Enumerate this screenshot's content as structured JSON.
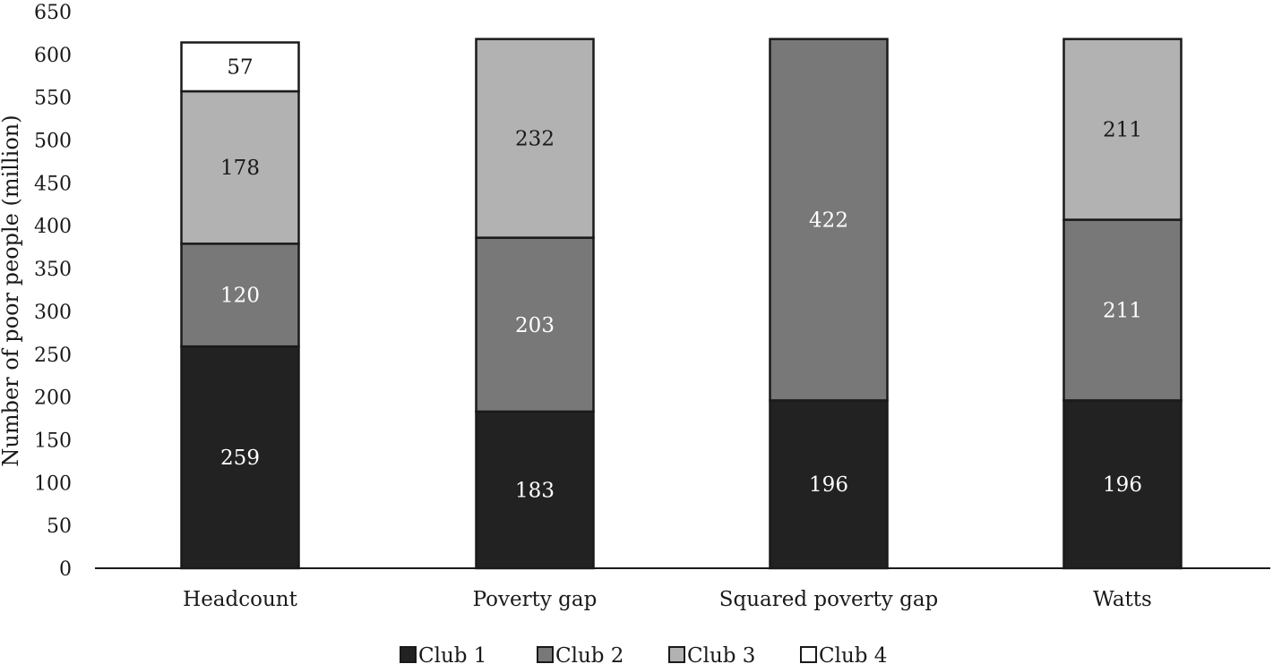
{
  "chart_data": {
    "type": "bar",
    "stacked": true,
    "categories": [
      "Headcount",
      "Poverty gap",
      "Squared poverty gap",
      "Watts"
    ],
    "series": [
      {
        "name": "Club 1",
        "color": "#222222",
        "label_color": "#ffffff",
        "values": [
          259,
          183,
          196,
          196
        ]
      },
      {
        "name": "Club 2",
        "color": "#787878",
        "label_color": "#ffffff",
        "values": [
          120,
          203,
          422,
          211
        ]
      },
      {
        "name": "Club 3",
        "color": "#b2b2b2",
        "label_color": "#1a1a1a",
        "values": [
          178,
          232,
          0,
          211
        ]
      },
      {
        "name": "Club 4",
        "color": "#ffffff",
        "label_color": "#1a1a1a",
        "values": [
          57,
          0,
          0,
          0
        ]
      }
    ],
    "ylabel": "Number of poor people (million)",
    "xlabel": "",
    "ylim": [
      0,
      650
    ],
    "yticks": [
      0,
      50,
      100,
      150,
      200,
      250,
      300,
      350,
      400,
      450,
      500,
      550,
      600,
      650
    ],
    "grid": false,
    "legend": "bottom"
  }
}
